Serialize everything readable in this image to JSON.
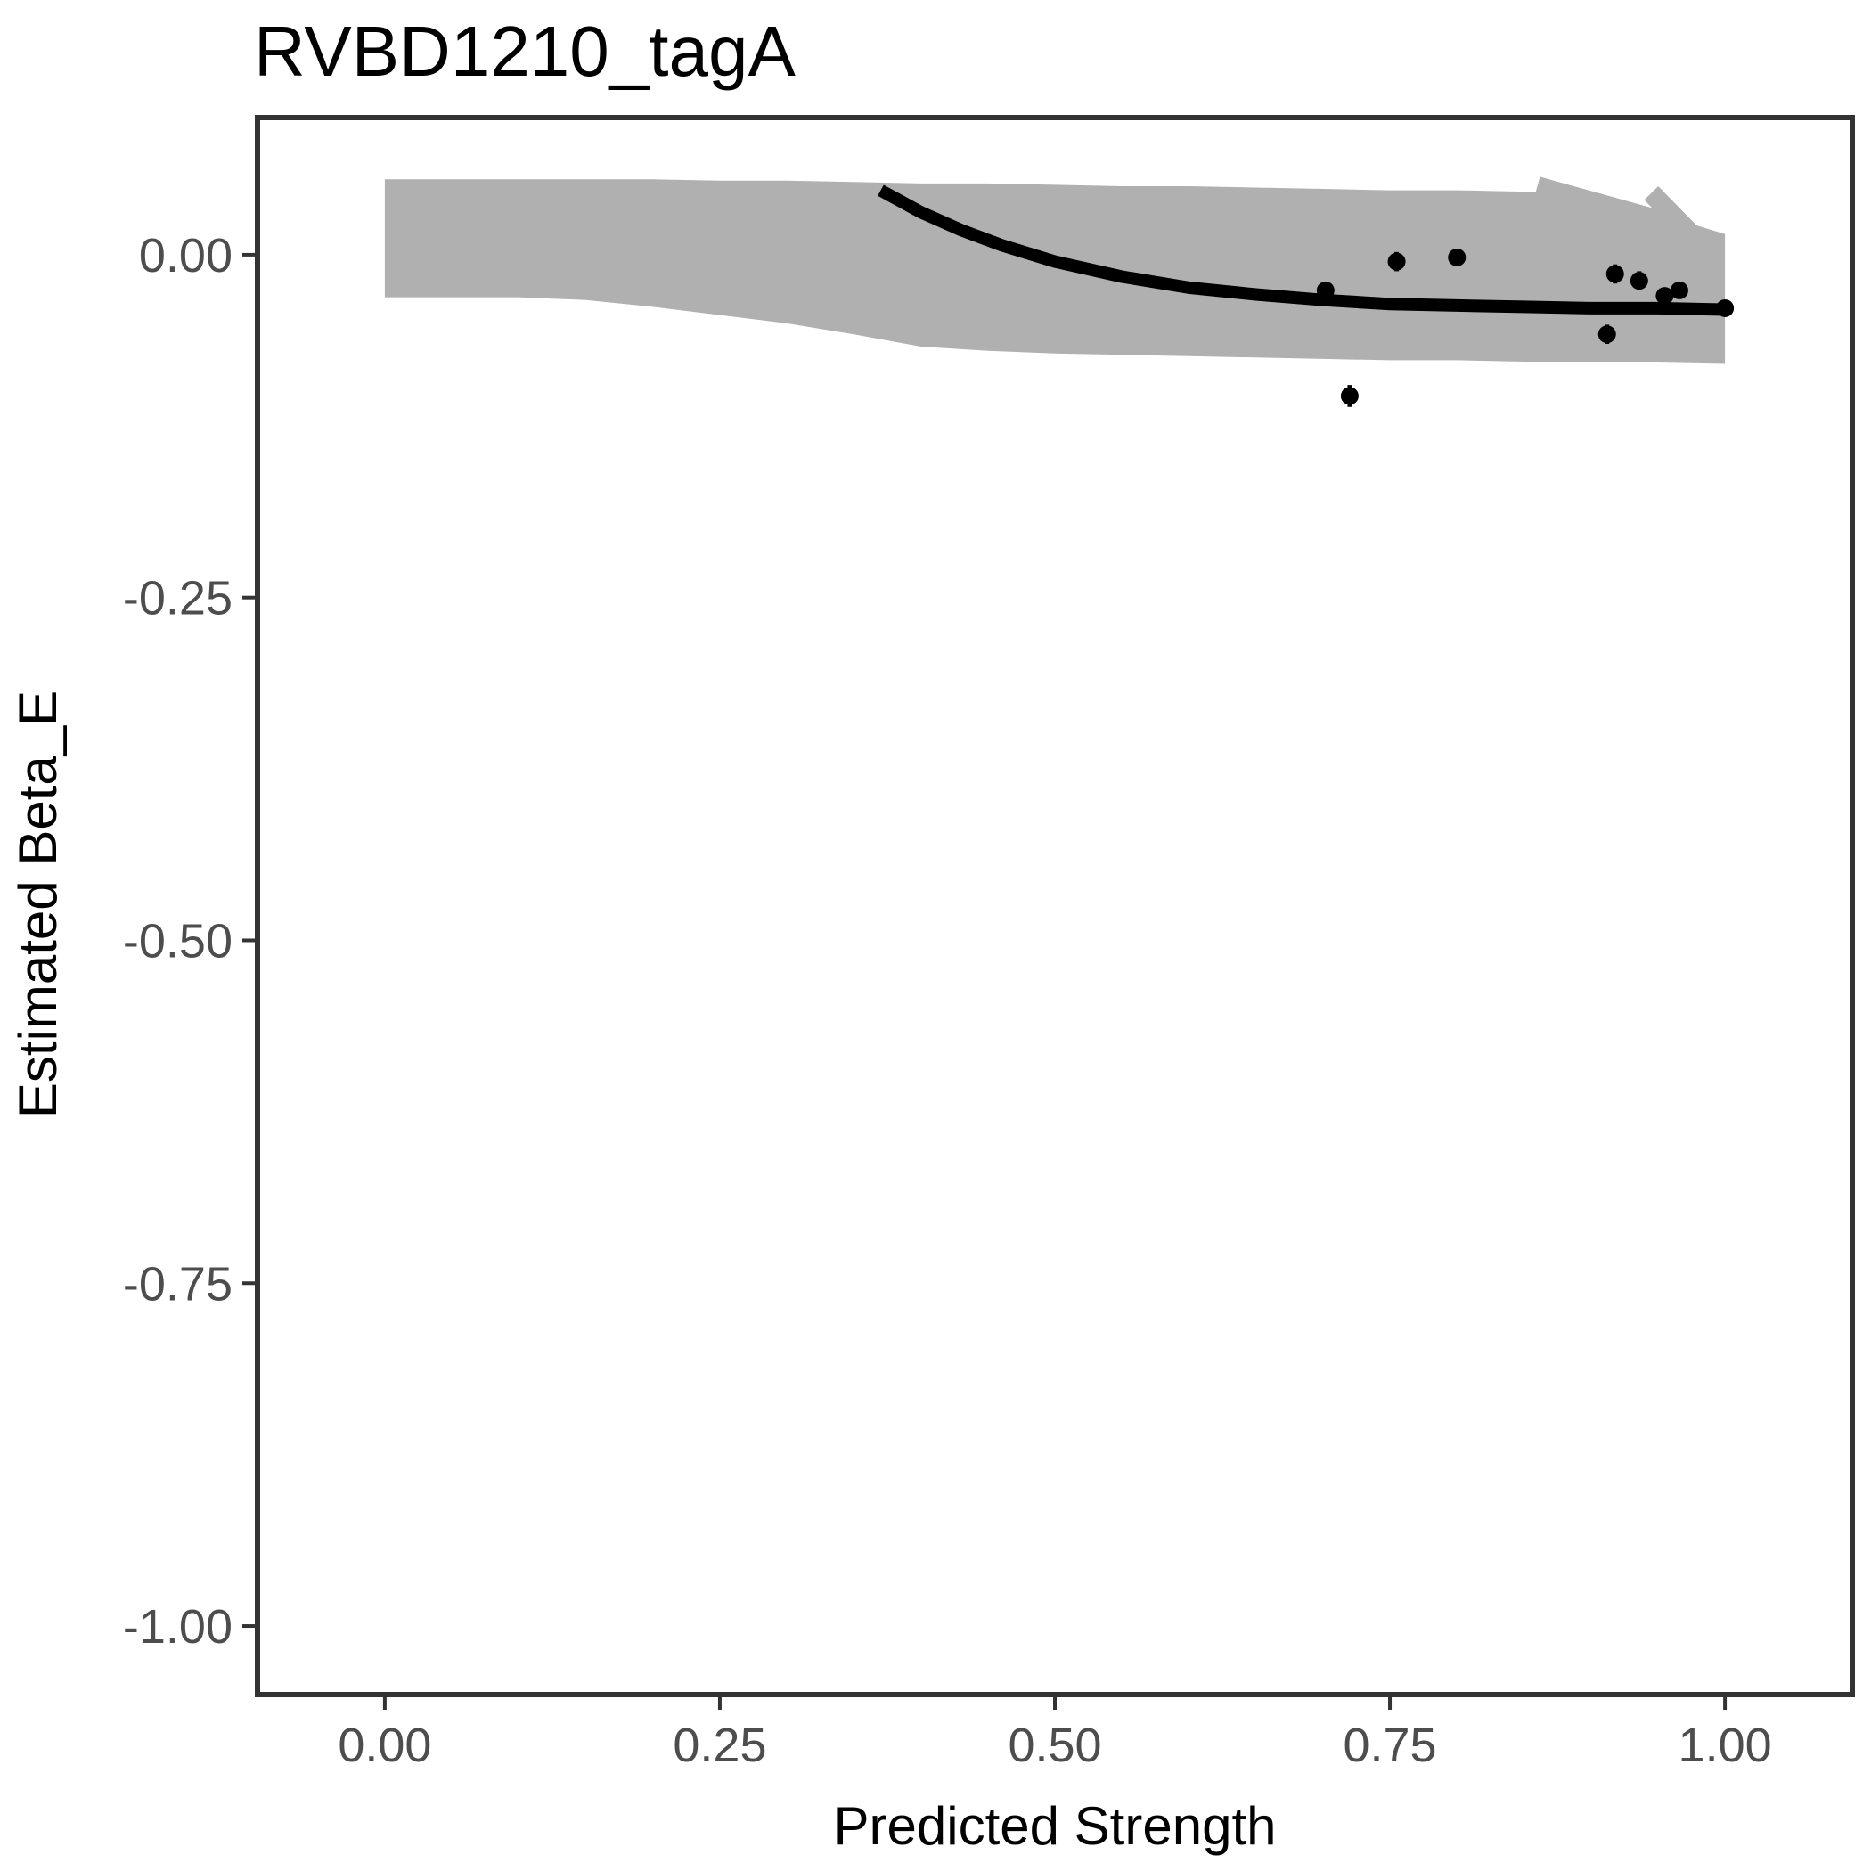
{
  "chart_data": {
    "type": "scatter",
    "title": "RVBD1210_tagA",
    "xlabel": "Predicted Strength",
    "ylabel": "Estimated Beta_E",
    "xlim": [
      -0.095,
      1.095
    ],
    "ylim": [
      -1.05,
      0.1
    ],
    "xticks": [
      0.0,
      0.25,
      0.5,
      0.75,
      1.0
    ],
    "xtick_labels": [
      "0.00",
      "0.25",
      "0.50",
      "0.75",
      "1.00"
    ],
    "yticks": [
      0.0,
      -0.25,
      -0.5,
      -0.75,
      -1.0
    ],
    "ytick_labels": [
      "0.00",
      "-0.25",
      "-0.50",
      "-0.75",
      "-1.00"
    ],
    "grid": false,
    "colors": {
      "band": "#b0b0b0",
      "fit_line": "#000000",
      "points": "#000000",
      "frame": "#333333"
    },
    "uncertainty_band": {
      "x": [
        0.0,
        0.05,
        0.1,
        0.15,
        0.2,
        0.25,
        0.3,
        0.35,
        0.4,
        0.45,
        0.5,
        0.55,
        0.6,
        0.65,
        0.7,
        0.75,
        0.8,
        0.85,
        0.9,
        0.95,
        1.0
      ],
      "upper": [
        0.055,
        0.055,
        0.055,
        0.055,
        0.055,
        0.054,
        0.054,
        0.053,
        0.052,
        0.052,
        0.051,
        0.05,
        0.05,
        0.049,
        0.048,
        0.047,
        0.047,
        0.046,
        0.045,
        0.03,
        0.015
      ],
      "lower": [
        -0.031,
        -0.031,
        -0.031,
        -0.033,
        -0.038,
        -0.044,
        -0.05,
        -0.058,
        -0.067,
        -0.07,
        -0.072,
        -0.073,
        -0.074,
        -0.075,
        -0.076,
        -0.077,
        -0.077,
        -0.078,
        -0.078,
        -0.078,
        -0.079
      ]
    },
    "band_spikes": [
      {
        "x": [
          0.86,
          0.97
        ],
        "y": [
          0.05,
          0.02
        ]
      },
      {
        "x": [
          0.945,
          0.975
        ],
        "y": [
          0.045,
          0.015
        ]
      }
    ],
    "fit_line": {
      "x": [
        0.37,
        0.4,
        0.43,
        0.46,
        0.5,
        0.55,
        0.6,
        0.65,
        0.7,
        0.75,
        0.8,
        0.85,
        0.9,
        0.95,
        1.0
      ],
      "y": [
        0.047,
        0.031,
        0.018,
        0.007,
        -0.005,
        -0.016,
        -0.024,
        -0.029,
        -0.033,
        -0.036,
        -0.037,
        -0.038,
        -0.039,
        -0.039,
        -0.04
      ]
    },
    "points": [
      {
        "x": 0.702,
        "y": -0.026,
        "err": 0.006
      },
      {
        "x": 0.72,
        "y": -0.103,
        "err": 0.008
      },
      {
        "x": 0.755,
        "y": -0.005,
        "err": 0.007
      },
      {
        "x": 0.8,
        "y": -0.002,
        "err": 0.005
      },
      {
        "x": 0.912,
        "y": -0.058,
        "err": 0.007
      },
      {
        "x": 0.918,
        "y": -0.014,
        "err": 0.007
      },
      {
        "x": 0.936,
        "y": -0.019,
        "err": 0.007
      },
      {
        "x": 0.955,
        "y": -0.03,
        "err": 0.006
      },
      {
        "x": 0.966,
        "y": -0.026,
        "err": 0.006
      },
      {
        "x": 1.0,
        "y": -0.039,
        "err": 0.004
      }
    ]
  }
}
